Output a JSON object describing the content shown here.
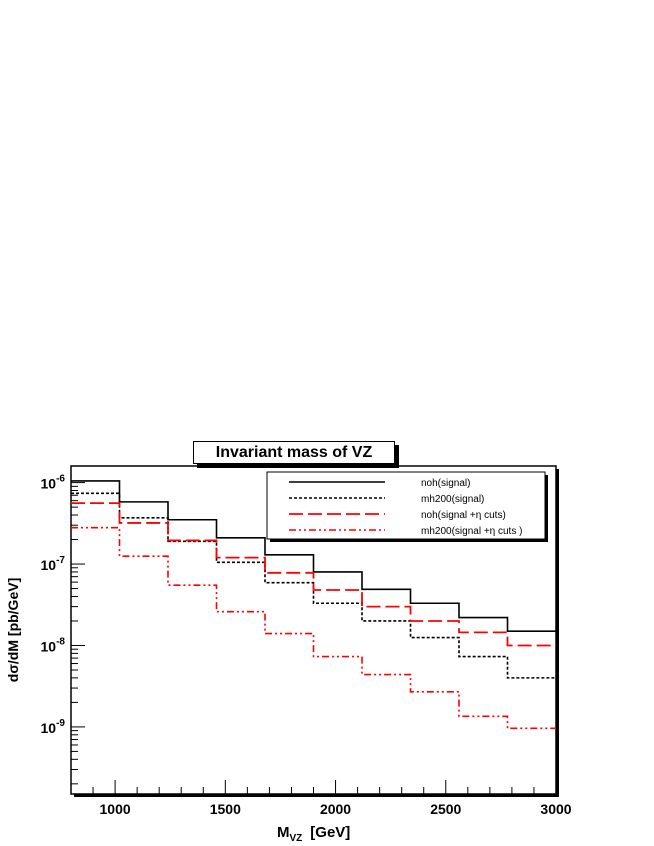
{
  "chart_data": {
    "type": "line",
    "title": "Invariant mass of VZ",
    "xlabel": "M_VZ  [GeV]",
    "xlabel_main": "M",
    "xlabel_sub": "VZ",
    "xlabel_unit": "[GeV]",
    "ylabel": "dσ/dM  [pb/GeV]",
    "ylabel_display": "dσ/dM  [pb/GeV]",
    "xlim": [
      800,
      3000
    ],
    "ylim": [
      1.5e-10,
      1.6e-06
    ],
    "yscale": "log",
    "grid": false,
    "legend_position": "top-right",
    "x_ticks": [
      1000,
      1500,
      2000,
      2500,
      3000
    ],
    "x_tick_labels": [
      "1000",
      "1500",
      "2000",
      "2500",
      "3000"
    ],
    "y_ticks": [
      1e-09,
      1e-08,
      1e-07,
      1e-06
    ],
    "y_tick_labels": [
      {
        "base": "10",
        "exp": "-9"
      },
      {
        "base": "10",
        "exp": "-8"
      },
      {
        "base": "10",
        "exp": "-7"
      },
      {
        "base": "10",
        "exp": "-6"
      }
    ],
    "bin_edges": [
      800,
      1020,
      1240,
      1460,
      1680,
      1900,
      2120,
      2340,
      2560,
      2780,
      3000
    ],
    "series": [
      {
        "name": "noh(signal)",
        "color": "#000000",
        "style": "solid",
        "values": [
          1.05e-06,
          5.8e-07,
          3.5e-07,
          2.1e-07,
          1.3e-07,
          8e-08,
          4.9e-08,
          3.3e-08,
          2.2e-08,
          1.5e-08
        ]
      },
      {
        "name": "mh200(signal)",
        "color": "#000000",
        "style": "dotted",
        "values": [
          7.4e-07,
          3.7e-07,
          1.9e-07,
          1.05e-07,
          5.9e-08,
          3.3e-08,
          2e-08,
          1.25e-08,
          7.3e-09,
          4e-09
        ]
      },
      {
        "name": "noh(signal +η cuts)",
        "color": "#ff0000",
        "style": "dashed",
        "values": [
          5.6e-07,
          3.2e-07,
          1.95e-07,
          1.2e-07,
          7.8e-08,
          4.8e-08,
          3e-08,
          2e-08,
          1.45e-08,
          1e-08
        ]
      },
      {
        "name": "mh200(signal +η cuts )",
        "color": "#ff0000",
        "style": "dashdotdot",
        "values": [
          2.8e-07,
          1.25e-07,
          5.5e-08,
          2.6e-08,
          1.4e-08,
          7.3e-09,
          4.4e-09,
          2.7e-09,
          1.35e-09,
          9.6e-10
        ]
      }
    ]
  }
}
